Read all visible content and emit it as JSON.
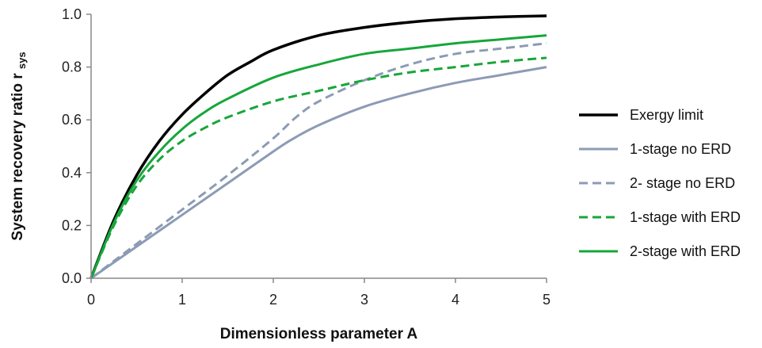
{
  "chart_data": {
    "type": "line",
    "title": "",
    "xlabel": "Dimensionless parameter A",
    "ylabel": "System recovery ratio r",
    "ylabel_sub": "sys",
    "xlim": [
      0,
      5
    ],
    "ylim": [
      0,
      1
    ],
    "xticks": [
      0,
      1,
      2,
      3,
      4,
      5
    ],
    "yticks": [
      0.0,
      0.2,
      0.4,
      0.6,
      0.8,
      1.0
    ],
    "xtick_labels": [
      "0",
      "1",
      "2",
      "3",
      "4",
      "5"
    ],
    "ytick_labels": [
      "0.0",
      "0.2",
      "0.4",
      "0.6",
      "0.8",
      "1.0"
    ],
    "grid": false,
    "legend_position": "right",
    "series": [
      {
        "name": "Exergy limit",
        "color": "#000000",
        "dash": "solid",
        "x": [
          0,
          0.25,
          0.5,
          0.75,
          1,
          1.25,
          1.5,
          1.75,
          2,
          2.5,
          3,
          3.5,
          4,
          4.5,
          5
        ],
        "y": [
          0,
          0.22,
          0.39,
          0.52,
          0.62,
          0.7,
          0.77,
          0.82,
          0.865,
          0.92,
          0.95,
          0.97,
          0.983,
          0.99,
          0.994
        ]
      },
      {
        "name": "1-stage no ERD",
        "color": "#8c9bb5",
        "dash": "solid",
        "x": [
          0,
          0.25,
          0.5,
          1,
          1.5,
          2,
          2.2,
          2.5,
          3,
          3.5,
          4,
          4.5,
          5
        ],
        "y": [
          0,
          0.06,
          0.12,
          0.24,
          0.36,
          0.48,
          0.525,
          0.58,
          0.65,
          0.7,
          0.74,
          0.77,
          0.8
        ]
      },
      {
        "name": "2- stage no ERD",
        "color": "#8c9bb5",
        "dash": "dashed",
        "x": [
          0,
          0.25,
          0.5,
          1,
          1.5,
          2,
          2.25,
          2.5,
          3,
          3.5,
          4,
          4.5,
          5
        ],
        "y": [
          0,
          0.065,
          0.13,
          0.26,
          0.39,
          0.53,
          0.61,
          0.67,
          0.75,
          0.81,
          0.85,
          0.87,
          0.89
        ]
      },
      {
        "name": "1-stage with ERD",
        "color": "#17a63a",
        "dash": "dashed",
        "x": [
          0,
          0.25,
          0.5,
          0.75,
          1,
          1.25,
          1.5,
          2,
          2.5,
          3,
          3.5,
          4,
          4.5,
          5
        ],
        "y": [
          0,
          0.2,
          0.35,
          0.45,
          0.52,
          0.57,
          0.61,
          0.67,
          0.71,
          0.75,
          0.78,
          0.8,
          0.82,
          0.835
        ]
      },
      {
        "name": "2-stage with ERD",
        "color": "#17a63a",
        "dash": "solid",
        "x": [
          0,
          0.25,
          0.5,
          0.75,
          1,
          1.25,
          1.5,
          2,
          2.5,
          3,
          3.5,
          4,
          4.5,
          5
        ],
        "y": [
          0,
          0.21,
          0.37,
          0.48,
          0.565,
          0.63,
          0.68,
          0.76,
          0.81,
          0.85,
          0.87,
          0.89,
          0.905,
          0.92
        ]
      }
    ]
  }
}
